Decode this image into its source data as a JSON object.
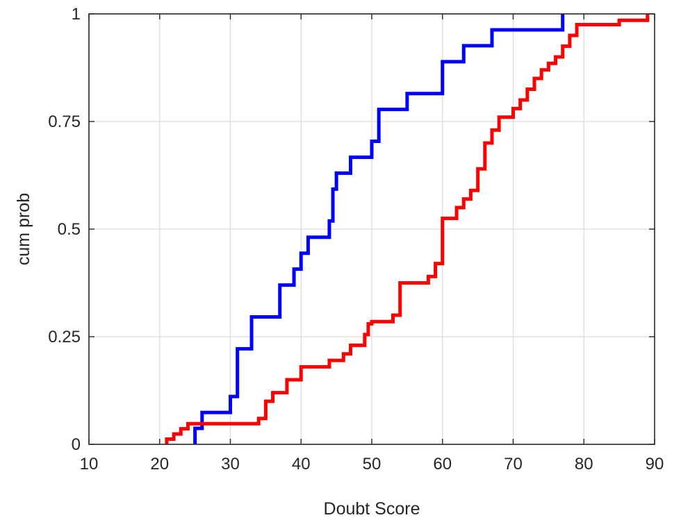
{
  "chart_data": {
    "type": "line",
    "step": true,
    "xlabel": "Doubt Score",
    "ylabel": "cum prob",
    "xlim": [
      10,
      90
    ],
    "ylim": [
      0,
      1
    ],
    "xticks": [
      10,
      20,
      30,
      40,
      50,
      60,
      70,
      80,
      90
    ],
    "xtick_labels": [
      "10",
      "20",
      "30",
      "40",
      "50",
      "60",
      "70",
      "80",
      "90"
    ],
    "yticks": [
      0,
      0.25,
      0.5,
      0.75,
      1
    ],
    "ytick_labels": [
      "0",
      "0.25",
      "0.5",
      "0.75",
      "1"
    ],
    "grid": true,
    "series": [
      {
        "color": "#0000ff",
        "x": [
          25,
          26,
          30,
          31,
          33,
          37,
          39,
          40,
          41,
          44,
          44.5,
          45,
          47,
          50,
          51,
          55,
          60,
          63,
          67,
          77
        ],
        "y": [
          0.037,
          0.074,
          0.111,
          0.222,
          0.296,
          0.37,
          0.407,
          0.444,
          0.481,
          0.519,
          0.593,
          0.63,
          0.667,
          0.704,
          0.778,
          0.815,
          0.889,
          0.926,
          0.963,
          1.0
        ]
      },
      {
        "color": "#ff0000",
        "x": [
          21,
          22,
          23,
          24,
          34,
          35,
          36,
          38,
          40,
          44,
          46,
          47,
          49,
          49.5,
          50,
          53,
          54,
          58,
          59,
          60,
          62,
          63,
          64,
          65,
          66,
          67,
          68,
          70,
          71,
          72,
          73,
          74,
          75,
          76,
          77,
          78,
          79,
          85,
          89
        ],
        "y": [
          0.012,
          0.024,
          0.036,
          0.048,
          0.06,
          0.1,
          0.12,
          0.15,
          0.18,
          0.195,
          0.21,
          0.23,
          0.255,
          0.28,
          0.285,
          0.3,
          0.375,
          0.39,
          0.42,
          0.525,
          0.55,
          0.57,
          0.59,
          0.64,
          0.7,
          0.73,
          0.76,
          0.78,
          0.8,
          0.825,
          0.85,
          0.87,
          0.885,
          0.9,
          0.925,
          0.95,
          0.975,
          0.985,
          1.0
        ]
      }
    ]
  }
}
